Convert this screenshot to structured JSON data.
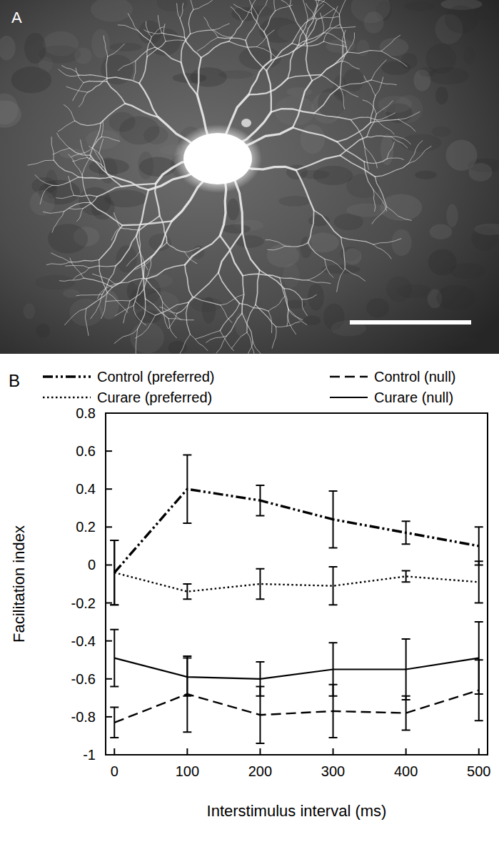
{
  "figure": {
    "panels": [
      {
        "label": "A"
      },
      {
        "label": "B"
      }
    ]
  },
  "chart_data": {
    "type": "line",
    "x_label": "Interstimulus interval (ms)",
    "y_label": "Facilitation index",
    "x": [
      0,
      100,
      200,
      300,
      400,
      500
    ],
    "xlim": [
      -12,
      512
    ],
    "xticks": [
      0,
      100,
      200,
      300,
      400,
      500
    ],
    "ylim": [
      -1,
      0.8
    ],
    "yticks": [
      -1,
      -0.8,
      -0.6,
      -0.4,
      -0.2,
      0,
      0.2,
      0.4,
      0.6,
      0.8
    ],
    "legend": "top",
    "series": [
      {
        "name": "Control (preferred)",
        "color": "#000000",
        "line_style": "dashdotdot",
        "values": [
          -0.04,
          0.4,
          0.34,
          0.24,
          0.17,
          0.1
        ],
        "errors": [
          0.17,
          0.18,
          0.08,
          0.15,
          0.06,
          0.1
        ]
      },
      {
        "name": "Control (null)",
        "color": "#000000",
        "line_style": "dashed",
        "values": [
          -0.83,
          -0.68,
          -0.79,
          -0.77,
          -0.78,
          -0.66
        ],
        "errors": [
          0.08,
          0.2,
          0.15,
          0.14,
          0.09,
          0.16
        ]
      },
      {
        "name": "Curare (preferred)",
        "color": "#000000",
        "line_style": "dotted",
        "values": [
          -0.04,
          -0.14,
          -0.1,
          -0.11,
          -0.06,
          -0.09
        ],
        "errors": [
          0.17,
          0.04,
          0.08,
          0.1,
          0.03,
          0.11
        ]
      },
      {
        "name": "Curare (null)",
        "color": "#000000",
        "line_style": "solid",
        "values": [
          -0.49,
          -0.59,
          -0.6,
          -0.55,
          -0.55,
          -0.49
        ],
        "errors": [
          0.15,
          0.1,
          0.09,
          0.14,
          0.16,
          0.19
        ]
      }
    ]
  }
}
